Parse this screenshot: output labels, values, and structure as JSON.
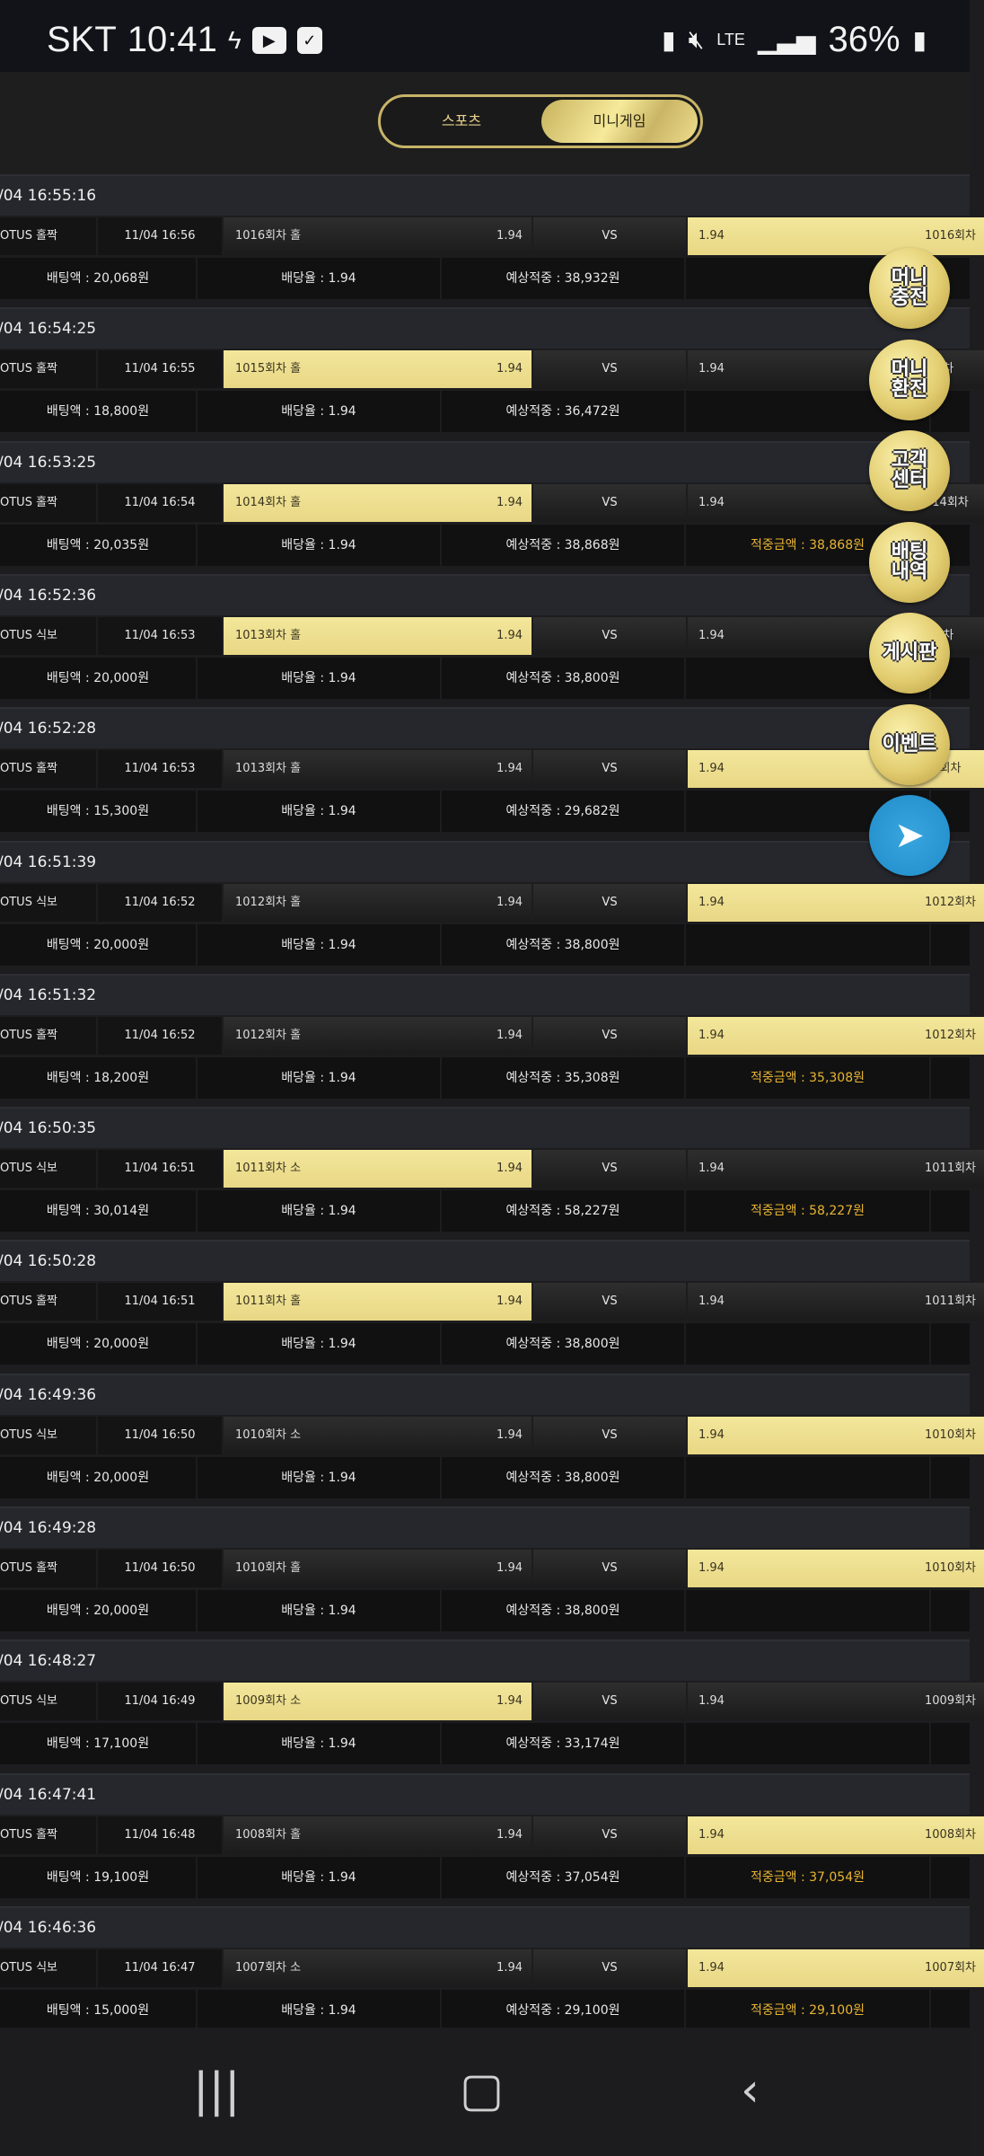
{
  "status": {
    "carrier": "SKT",
    "time": "10:41",
    "battery": "36%"
  },
  "tabs": {
    "sports": "스포츠",
    "minigame": "미니게임",
    "active": "minigame"
  },
  "labels": {
    "vs": "VS",
    "bet_prefix": "배팅액 : ",
    "rate_prefix": "배당율 : ",
    "expect_prefix": "예상적중 : ",
    "win_prefix": "적중금액 : ",
    "won": "원"
  },
  "colors": {
    "gold": "#f0e08e",
    "win_text": "#e9b533",
    "bg": "#1d1d1f"
  },
  "bets": [
    {
      "time": "/04 16:55:16",
      "game": "OTUS 홀짝",
      "date": "11/04 16:56",
      "left": "1016회차 홀",
      "right": "1016회차",
      "odds": "1.94",
      "selected": "right",
      "amount": "20,068",
      "rate": "1.94",
      "expected": "38,932",
      "win": null
    },
    {
      "time": "/04 16:54:25",
      "game": "OTUS 홀짝",
      "date": "11/04 16:55",
      "left": "1015회차 홀",
      "right": "5회차",
      "odds": "1.94",
      "selected": "left",
      "amount": "18,800",
      "rate": "1.94",
      "expected": "36,472",
      "win": null
    },
    {
      "time": "/04 16:53:25",
      "game": "OTUS 홀짝",
      "date": "11/04 16:54",
      "left": "1014회차 홀",
      "right": "014회차",
      "odds": "1.94",
      "selected": "left",
      "amount": "20,035",
      "rate": "1.94",
      "expected": "38,868",
      "win": "38,868"
    },
    {
      "time": "/04 16:52:36",
      "game": "OTUS 식보",
      "date": "11/04 16:53",
      "left": "1013회차 홀",
      "right": "3회차",
      "odds": "1.94",
      "selected": "left",
      "amount": "20,000",
      "rate": "1.94",
      "expected": "38,800",
      "win": null
    },
    {
      "time": "/04 16:52:28",
      "game": "OTUS 홀짝",
      "date": "11/04 16:53",
      "left": "1013회차 홀",
      "right": "13회차",
      "odds": "1.94",
      "selected": "right",
      "amount": "15,300",
      "rate": "1.94",
      "expected": "29,682",
      "win": null
    },
    {
      "time": "/04 16:51:39",
      "game": "OTUS 식보",
      "date": "11/04 16:52",
      "left": "1012회차 홀",
      "right": "1012회차",
      "odds": "1.94",
      "selected": "right",
      "amount": "20,000",
      "rate": "1.94",
      "expected": "38,800",
      "win": null
    },
    {
      "time": "/04 16:51:32",
      "game": "OTUS 홀짝",
      "date": "11/04 16:52",
      "left": "1012회차 홀",
      "right": "1012회차",
      "odds": "1.94",
      "selected": "right",
      "amount": "18,200",
      "rate": "1.94",
      "expected": "35,308",
      "win": "35,308"
    },
    {
      "time": "/04 16:50:35",
      "game": "OTUS 식보",
      "date": "11/04 16:51",
      "left": "1011회차 소",
      "right": "1011회차",
      "odds": "1.94",
      "selected": "left",
      "amount": "30,014",
      "rate": "1.94",
      "expected": "58,227",
      "win": "58,227"
    },
    {
      "time": "/04 16:50:28",
      "game": "OTUS 홀짝",
      "date": "11/04 16:51",
      "left": "1011회차 홀",
      "right": "1011회차",
      "odds": "1.94",
      "selected": "left",
      "amount": "20,000",
      "rate": "1.94",
      "expected": "38,800",
      "win": null
    },
    {
      "time": "/04 16:49:36",
      "game": "OTUS 식보",
      "date": "11/04 16:50",
      "left": "1010회차 소",
      "right": "1010회차",
      "odds": "1.94",
      "selected": "right",
      "amount": "20,000",
      "rate": "1.94",
      "expected": "38,800",
      "win": null
    },
    {
      "time": "/04 16:49:28",
      "game": "OTUS 홀짝",
      "date": "11/04 16:50",
      "left": "1010회차 홀",
      "right": "1010회차",
      "odds": "1.94",
      "selected": "right",
      "amount": "20,000",
      "rate": "1.94",
      "expected": "38,800",
      "win": null
    },
    {
      "time": "/04 16:48:27",
      "game": "OTUS 식보",
      "date": "11/04 16:49",
      "left": "1009회차 소",
      "right": "1009회차",
      "odds": "1.94",
      "selected": "left",
      "amount": "17,100",
      "rate": "1.94",
      "expected": "33,174",
      "win": null
    },
    {
      "time": "/04 16:47:41",
      "game": "OTUS 홀짝",
      "date": "11/04 16:48",
      "left": "1008회차 홀",
      "right": "1008회차",
      "odds": "1.94",
      "selected": "right",
      "amount": "19,100",
      "rate": "1.94",
      "expected": "37,054",
      "win": "37,054"
    },
    {
      "time": "/04 16:46:36",
      "game": "OTUS 식보",
      "date": "11/04 16:47",
      "left": "1007회차 소",
      "right": "1007회차",
      "odds": "1.94",
      "selected": "right",
      "amount": "15,000",
      "rate": "1.94",
      "expected": "29,100",
      "win": "29,100"
    }
  ],
  "floating": [
    {
      "label": "머니\n충전",
      "icon": "money-deposit"
    },
    {
      "label": "머니\n환전",
      "icon": "money-withdraw"
    },
    {
      "label": "고객\n센터",
      "icon": "customer-center"
    },
    {
      "label": "배팅\n내역",
      "icon": "bet-history"
    },
    {
      "label": "게시판",
      "icon": "board"
    },
    {
      "label": "이벤트",
      "icon": "event"
    },
    {
      "label": "",
      "icon": "telegram-icon"
    }
  ]
}
